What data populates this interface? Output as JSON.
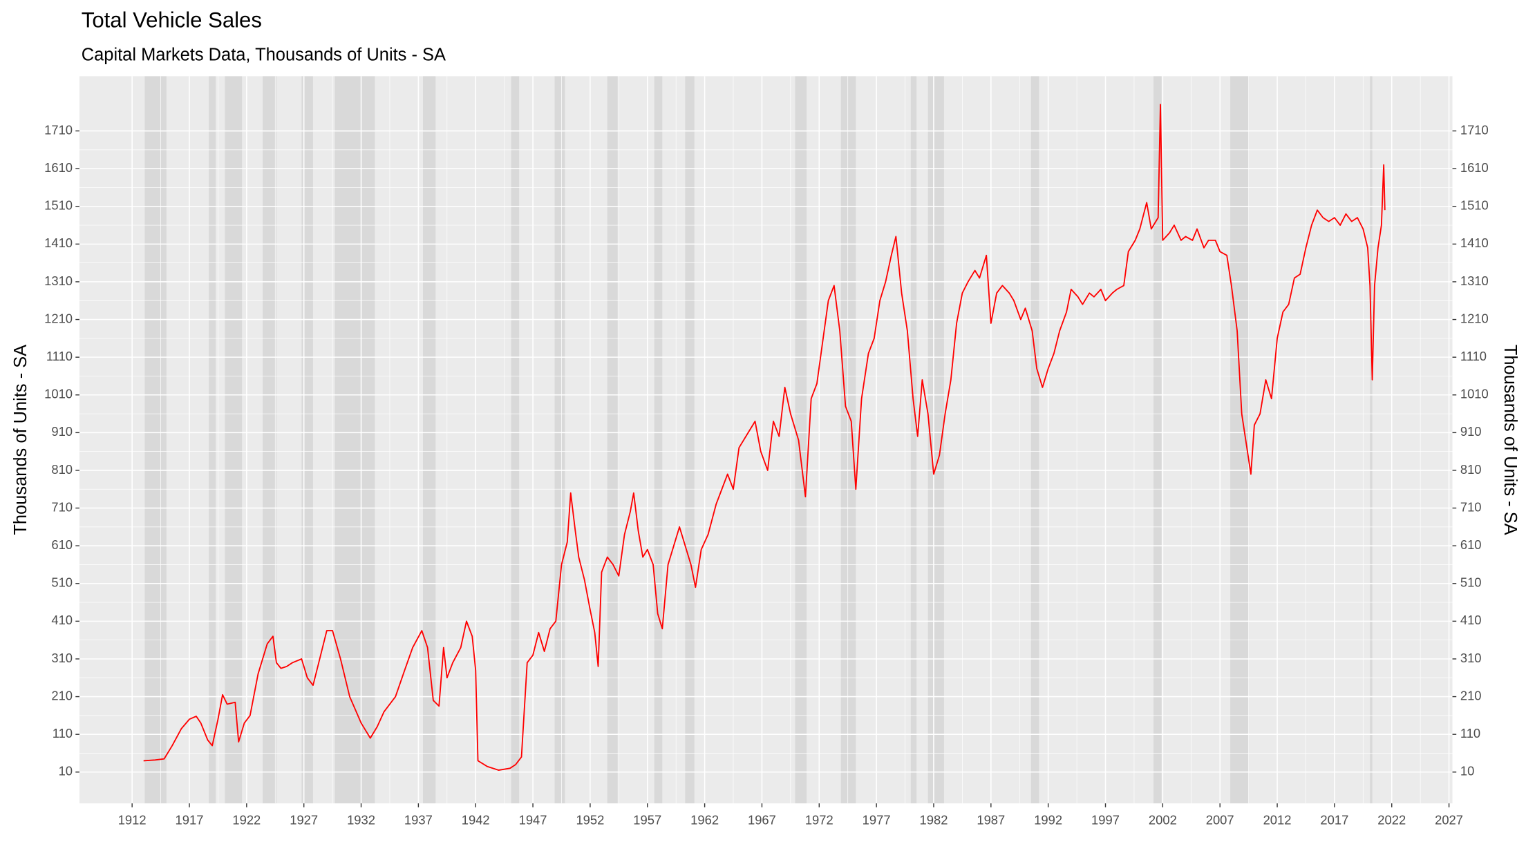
{
  "chart_data": {
    "type": "line",
    "title": "Total Vehicle Sales",
    "subtitle": "Capital Markets Data, Thousands of Units - SA",
    "ylabel": "Thousands of Units - SA",
    "xlim": [
      1907.4,
      2027.3
    ],
    "ylim": [
      -73,
      1855
    ],
    "xticks": [
      1912,
      1917,
      1922,
      1927,
      1932,
      1937,
      1942,
      1947,
      1952,
      1957,
      1962,
      1967,
      1972,
      1977,
      1982,
      1987,
      1992,
      1997,
      2002,
      2007,
      2012,
      2017,
      2022,
      2027
    ],
    "yticks": [
      10,
      110,
      210,
      310,
      410,
      510,
      610,
      710,
      810,
      910,
      1010,
      1110,
      1210,
      1310,
      1410,
      1510,
      1610,
      1710
    ],
    "grid": true,
    "shaded_periods": [
      [
        1913.1,
        1915.0
      ],
      [
        1918.7,
        1919.3
      ],
      [
        1920.1,
        1921.6
      ],
      [
        1923.4,
        1924.6
      ],
      [
        1926.8,
        1927.8
      ],
      [
        1929.7,
        1933.2
      ],
      [
        1937.4,
        1938.5
      ],
      [
        1945.1,
        1945.8
      ],
      [
        1948.9,
        1949.8
      ],
      [
        1953.5,
        1954.4
      ],
      [
        1957.6,
        1958.3
      ],
      [
        1960.3,
        1961.1
      ],
      [
        1969.9,
        1970.9
      ],
      [
        1973.9,
        1975.2
      ],
      [
        1980.0,
        1980.5
      ],
      [
        1981.5,
        1982.9
      ],
      [
        1990.5,
        1991.2
      ],
      [
        2001.2,
        2001.9
      ],
      [
        2007.9,
        2009.5
      ],
      [
        2020.1,
        2020.3
      ]
    ],
    "shade_color": "#d9d9d9",
    "x": [
      1913,
      1914,
      1914.8,
      1915.5,
      1916.3,
      1917,
      1917.6,
      1918,
      1918.6,
      1919,
      1919.5,
      1919.9,
      1920.3,
      1921,
      1921.3,
      1921.8,
      1922.3,
      1923,
      1923.8,
      1924.3,
      1924.6,
      1925,
      1925.5,
      1926,
      1926.8,
      1927.3,
      1927.8,
      1928.3,
      1929,
      1929.5,
      1930.2,
      1931,
      1932,
      1932.8,
      1933.4,
      1934,
      1935,
      1935.8,
      1936.5,
      1937.3,
      1937.8,
      1938.3,
      1938.8,
      1939.2,
      1939.5,
      1940,
      1940.7,
      1941.2,
      1941.7,
      1942.0,
      1942.2,
      1943,
      1944,
      1945,
      1945.5,
      1946,
      1946.5,
      1947,
      1947.5,
      1948,
      1948.5,
      1949,
      1949.5,
      1950,
      1950.3,
      1950.7,
      1951,
      1951.5,
      1952,
      1952.4,
      1952.7,
      1953,
      1953.5,
      1954,
      1954.5,
      1955,
      1955.5,
      1955.8,
      1956.2,
      1956.6,
      1957,
      1957.5,
      1957.9,
      1958.3,
      1958.8,
      1959.3,
      1959.8,
      1960.2,
      1960.8,
      1961.2,
      1961.7,
      1962.3,
      1963,
      1963.5,
      1964,
      1964.5,
      1965,
      1965.8,
      1966.4,
      1966.9,
      1967.5,
      1968,
      1968.5,
      1969,
      1969.5,
      1970.2,
      1970.8,
      1971.3,
      1971.8,
      1972.3,
      1972.8,
      1973.3,
      1973.8,
      1974.3,
      1974.8,
      1975.2,
      1975.7,
      1976.3,
      1976.8,
      1977.3,
      1977.8,
      1978.3,
      1978.7,
      1979.2,
      1979.7,
      1980.2,
      1980.6,
      1981,
      1981.5,
      1982,
      1982.5,
      1983,
      1983.5,
      1984,
      1984.5,
      1985,
      1985.6,
      1986,
      1986.6,
      1987,
      1987.5,
      1988,
      1988.6,
      1989,
      1989.6,
      1990,
      1990.6,
      1991,
      1991.5,
      1992,
      1992.5,
      1993,
      1993.6,
      1994,
      1994.6,
      1995,
      1995.6,
      1996,
      1996.6,
      1997,
      1997.6,
      1998,
      1998.6,
      1999,
      1999.6,
      2000,
      2000.6,
      2001,
      2001.6,
      2001.8,
      2002,
      2002.6,
      2003,
      2003.6,
      2004,
      2004.6,
      2005,
      2005.6,
      2006,
      2006.6,
      2007,
      2007.6,
      2008,
      2008.5,
      2008.9,
      2009.2,
      2009.5,
      2009.7,
      2010,
      2010.5,
      2011,
      2011.5,
      2012,
      2012.5,
      2013,
      2013.5,
      2014,
      2014.5,
      2015,
      2015.5,
      2016,
      2016.5,
      2017,
      2017.5,
      2018,
      2018.5,
      2019,
      2019.5,
      2019.9,
      2020.1,
      2020.3,
      2020.5,
      2020.8,
      2021.1,
      2021.3,
      2021.4
    ],
    "series": [
      {
        "color": "#ff0000",
        "values": [
          40,
          42,
          45,
          80,
          125,
          150,
          158,
          140,
          95,
          80,
          150,
          215,
          190,
          195,
          90,
          140,
          160,
          270,
          350,
          370,
          300,
          285,
          290,
          300,
          310,
          260,
          240,
          300,
          385,
          385,
          310,
          210,
          140,
          100,
          130,
          170,
          210,
          280,
          340,
          385,
          340,
          200,
          185,
          340,
          260,
          300,
          340,
          410,
          370,
          280,
          40,
          25,
          15,
          20,
          30,
          50,
          300,
          320,
          380,
          330,
          390,
          410,
          560,
          620,
          750,
          650,
          580,
          520,
          440,
          380,
          290,
          540,
          580,
          560,
          530,
          640,
          700,
          750,
          650,
          580,
          600,
          560,
          430,
          390,
          560,
          610,
          660,
          620,
          560,
          500,
          600,
          640,
          720,
          760,
          800,
          760,
          870,
          910,
          940,
          860,
          810,
          940,
          900,
          1030,
          960,
          890,
          740,
          1000,
          1040,
          1150,
          1260,
          1300,
          1180,
          980,
          940,
          760,
          1000,
          1120,
          1160,
          1260,
          1310,
          1380,
          1430,
          1280,
          1180,
          1000,
          900,
          1050,
          960,
          800,
          850,
          960,
          1050,
          1200,
          1280,
          1310,
          1340,
          1320,
          1380,
          1200,
          1280,
          1300,
          1280,
          1260,
          1210,
          1240,
          1180,
          1080,
          1030,
          1080,
          1120,
          1180,
          1230,
          1290,
          1270,
          1250,
          1280,
          1270,
          1290,
          1260,
          1280,
          1290,
          1300,
          1390,
          1420,
          1450,
          1520,
          1450,
          1480,
          1780,
          1420,
          1440,
          1460,
          1420,
          1430,
          1420,
          1450,
          1400,
          1420,
          1420,
          1390,
          1380,
          1300,
          1180,
          960,
          900,
          840,
          800,
          930,
          960,
          1050,
          1000,
          1160,
          1230,
          1250,
          1320,
          1330,
          1400,
          1460,
          1500,
          1480,
          1470,
          1480,
          1460,
          1490,
          1470,
          1480,
          1450,
          1400,
          1300,
          1050,
          1300,
          1400,
          1460,
          1620,
          1500
        ]
      }
    ]
  }
}
